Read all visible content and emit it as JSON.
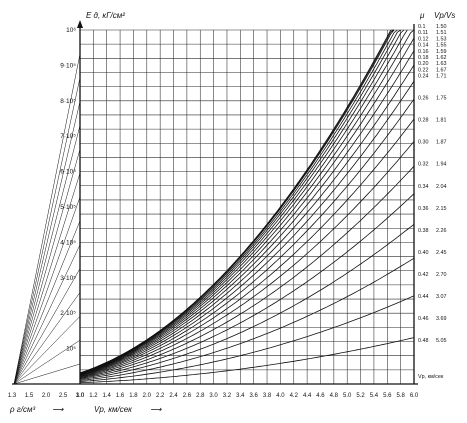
{
  "chart_data": {
    "type": "line",
    "y_axis_label": "E д, кГ/см²",
    "y_ticks": [
      "10⁵",
      "2·10⁵",
      "3·10⁵",
      "4·10⁵",
      "5·10⁵",
      "6·10⁵",
      "7·10⁵",
      "8·10⁵",
      "9·10⁵",
      "10⁶"
    ],
    "ylim": [
      0,
      1000000
    ],
    "rho_axis_label": "ρ г/см³",
    "rho_ticks": [
      "1.3",
      "1.5",
      "2.0",
      "2.5",
      "3.0"
    ],
    "vp_axis_label": "Vp, км/сек",
    "vp_ticks": [
      "1.0",
      "1.2",
      "1.4",
      "1.6",
      "1.8",
      "2.0",
      "2.2",
      "2.4",
      "2.6",
      "2.8",
      "3.0",
      "3.2",
      "3.4",
      "3.6",
      "3.8",
      "4.0",
      "4.2",
      "4.4",
      "4.6",
      "4.8",
      "5.0",
      "5.2",
      "5.4",
      "5.6",
      "5.8",
      "6.0"
    ],
    "xlim": [
      1.0,
      6.0
    ],
    "mu_header": "μ",
    "ratio_header": "Vp/Vs",
    "right_scale": [
      {
        "mu": "0.1",
        "ratio": "1.50"
      },
      {
        "mu": "0.11",
        "ratio": "1.51"
      },
      {
        "mu": "0.12",
        "ratio": "1.53"
      },
      {
        "mu": "0.14",
        "ratio": "1.55"
      },
      {
        "mu": "0.16",
        "ratio": "1.59"
      },
      {
        "mu": "0.18",
        "ratio": "1.62"
      },
      {
        "mu": "0.20",
        "ratio": "1.63"
      },
      {
        "mu": "0.22",
        "ratio": "1.67"
      },
      {
        "mu": "0.24",
        "ratio": "1.71"
      },
      {
        "mu": "0.26",
        "ratio": "1.75"
      },
      {
        "mu": "0.28",
        "ratio": "1.81"
      },
      {
        "mu": "0.30",
        "ratio": "1.87"
      },
      {
        "mu": "0.32",
        "ratio": "1.94"
      },
      {
        "mu": "0.34",
        "ratio": "2.04"
      },
      {
        "mu": "0.36",
        "ratio": "2.15"
      },
      {
        "mu": "0.38",
        "ratio": "2.26"
      },
      {
        "mu": "0.40",
        "ratio": "2.45"
      },
      {
        "mu": "0.42",
        "ratio": "2.70"
      },
      {
        "mu": "0.44",
        "ratio": "3.07"
      },
      {
        "mu": "0.46",
        "ratio": "3.69"
      },
      {
        "mu": "0.48",
        "ratio": "5.05"
      }
    ],
    "series_mu": [
      0.1,
      0.11,
      0.12,
      0.14,
      0.16,
      0.18,
      0.2,
      0.22,
      0.24,
      0.26,
      0.28,
      0.3,
      0.32,
      0.34,
      0.36,
      0.38,
      0.4,
      0.42,
      0.44,
      0.46,
      0.48
    ],
    "density_lines": 14,
    "grid": true,
    "colors": {
      "ink": "#111111",
      "grid": "#2a2a2a",
      "paper": "#ffffff"
    }
  }
}
